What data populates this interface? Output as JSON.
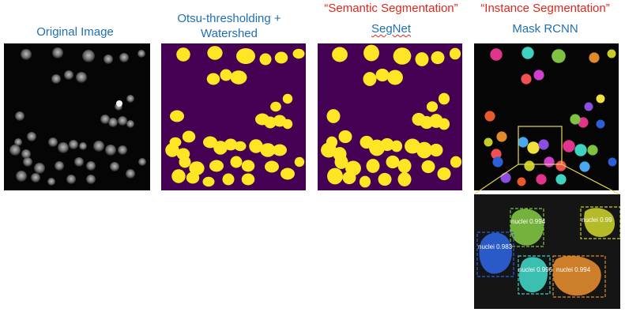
{
  "columns": [
    {
      "title": "Original Image"
    },
    {
      "title_line1": "Otsu-thresholding +",
      "title_line2": "Watershed"
    },
    {
      "category": "“Semantic Segmentation”",
      "title": "SegNet"
    },
    {
      "category": "“Instance Segmentation”",
      "title": "Mask RCNN"
    }
  ],
  "zoom_detections": [
    {
      "label": "nuclei 0.994",
      "color": "#7fc241"
    },
    {
      "label": "nuclei 0.983",
      "color": "#2c5fd8"
    },
    {
      "label": "nuclei 0.996",
      "color": "#3fd1c2"
    },
    {
      "label": "nuclei 0.994",
      "color": "#e08a2c"
    },
    {
      "label": "nuclei 0.99",
      "color": "#c7cc2a"
    }
  ],
  "colors": {
    "title_blue": "#1f6fb5",
    "title_red": "#e0261c",
    "mask_background": "#440154",
    "mask_foreground": "#fde725",
    "zoom_box": "#e6d84a"
  }
}
